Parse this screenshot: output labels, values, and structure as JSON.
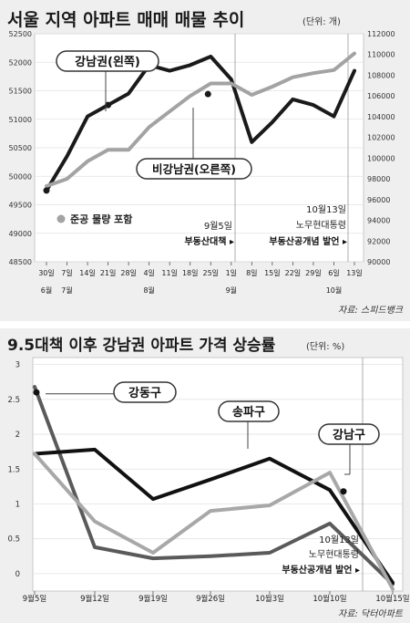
{
  "chart_data": [
    {
      "type": "line",
      "title": "서울 지역 아파트 매매 매물 추이",
      "unit": "(단위: 개)",
      "source": "자료: 스피드뱅크",
      "x_ticks": [
        "30일",
        "7일",
        "14일",
        "21일",
        "28일",
        "4일",
        "11일",
        "18일",
        "25일",
        "1일",
        "8일",
        "15일",
        "22일",
        "29일",
        "6일",
        "13일"
      ],
      "month_labels": [
        {
          "label": "6월",
          "at": 0
        },
        {
          "label": "7월",
          "at": 1
        },
        {
          "label": "8월",
          "at": 5
        },
        {
          "label": "9월",
          "at": 9
        },
        {
          "label": "10월",
          "at": 14
        }
      ],
      "y_left": {
        "ticks": [
          48500,
          49000,
          49500,
          50000,
          50500,
          51000,
          51500,
          52000,
          52500
        ],
        "range": [
          48500,
          52500
        ]
      },
      "y_right": {
        "ticks": [
          90000,
          92000,
          94000,
          96000,
          98000,
          100000,
          102000,
          104000,
          106000,
          108000,
          110000,
          112000
        ],
        "range": [
          90000,
          112000
        ]
      },
      "series": [
        {
          "name": "강남권(왼쪽)",
          "axis": "left",
          "color": "#1a1a1a",
          "values": [
            49750,
            50350,
            51050,
            51250,
            51450,
            51950,
            51850,
            51950,
            52100,
            51700,
            50600,
            50950,
            51350,
            51250,
            51050,
            51850
          ]
        },
        {
          "name": "비강남권(오른쪽)",
          "axis": "right",
          "color": "#a3a3a3",
          "values": [
            97300,
            98000,
            99700,
            100800,
            100800,
            103000,
            104500,
            106000,
            107200,
            107200,
            106100,
            106900,
            107800,
            108200,
            108500,
            110100
          ]
        }
      ],
      "legend": "준공 물량 포함",
      "annotations": [
        {
          "lines": [
            "9월5일",
            "부동산대책 ▸"
          ],
          "at": 9
        },
        {
          "lines": [
            "10월13일",
            "노무현대통령",
            "부동산공개념 발언 ▸"
          ],
          "at": 15
        }
      ]
    },
    {
      "type": "line",
      "title": "9.5대책 이후 강남권 아파트 가격 상승률",
      "unit": "(단위: %)",
      "source": "자료: 닥터아파트",
      "categories": [
        "9월5일",
        "9월12일",
        "9월19일",
        "9월26일",
        "10월3일",
        "10월10일",
        "10월15일"
      ],
      "y_ticks": [
        0,
        0.5,
        1,
        1.5,
        2,
        2.5,
        3
      ],
      "ylim": [
        -0.25,
        3.1
      ],
      "series": [
        {
          "name": "강동구",
          "color": "#5a5a5a",
          "values": [
            2.68,
            0.38,
            0.22,
            0.25,
            0.3,
            0.72,
            -0.15
          ]
        },
        {
          "name": "송파구",
          "color": "#111111",
          "values": [
            1.72,
            1.78,
            1.07,
            1.35,
            1.65,
            1.2,
            -0.13
          ]
        },
        {
          "name": "강남구",
          "color": "#a8a8a8",
          "values": [
            1.72,
            0.75,
            0.3,
            0.9,
            0.98,
            1.45,
            -0.22
          ]
        }
      ],
      "annotation": [
        "10월13일",
        "노무현대통령",
        "부동산공개념 발언 ▸"
      ]
    }
  ]
}
